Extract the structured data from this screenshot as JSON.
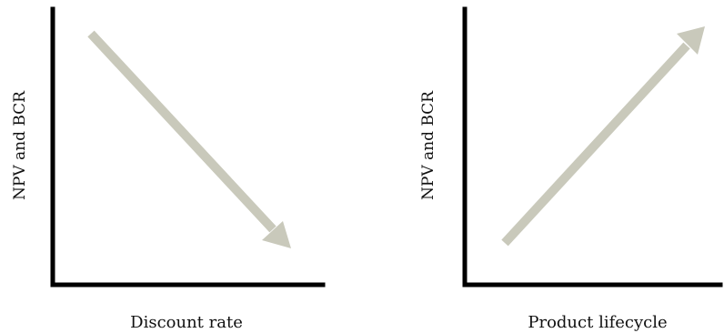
{
  "diagrams": [
    {
      "ylabel": "NPV and BCR",
      "xlabel": "Discount rate",
      "trend": "decreasing"
    },
    {
      "ylabel": "NPV and BCR",
      "xlabel": "Product lifecycle",
      "trend": "increasing"
    }
  ],
  "colors": {
    "axis": "#000000",
    "arrow": "#c9c9bb",
    "text": "#111111"
  }
}
